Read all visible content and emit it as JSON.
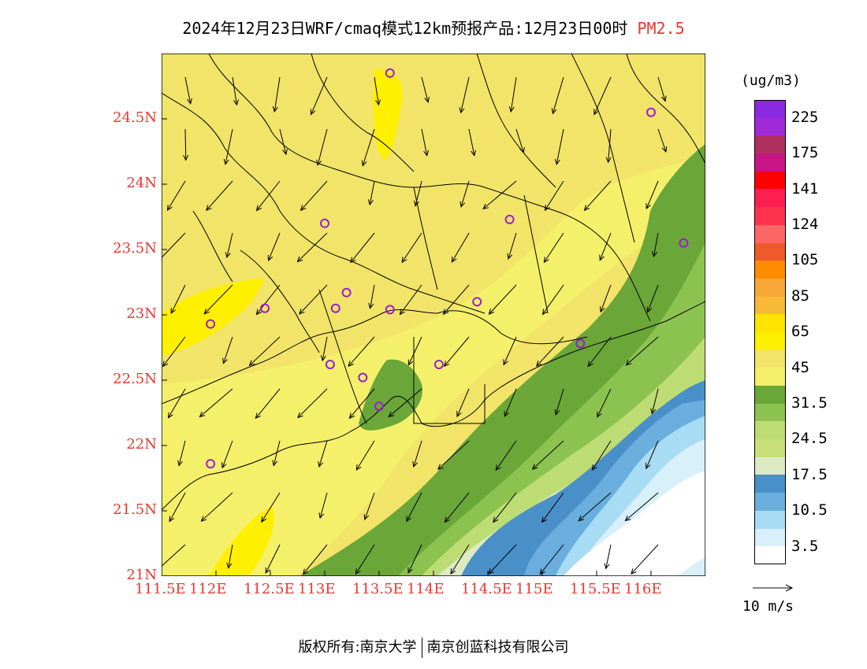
{
  "title": {
    "main": "2024年12月23日WRF/cmaq模式12km预报产品:12月23日00时",
    "species": "PM2.5"
  },
  "map": {
    "x_ticks": [
      "111.5E",
      "112E",
      "112.5E",
      "113E",
      "113.5E",
      "114E",
      "114.5E",
      "115E",
      "115.5E",
      "116E"
    ],
    "y_ticks": [
      "24.5N",
      "24N",
      "23.5N",
      "23N",
      "22.5N",
      "22N",
      "21.5N",
      "21N"
    ],
    "stations": [
      {
        "lon": 113.6,
        "lat": 24.85
      },
      {
        "lon": 116.0,
        "lat": 24.55
      },
      {
        "lon": 113.0,
        "lat": 23.7
      },
      {
        "lon": 114.7,
        "lat": 23.73
      },
      {
        "lon": 116.3,
        "lat": 23.55
      },
      {
        "lon": 112.45,
        "lat": 23.05
      },
      {
        "lon": 113.2,
        "lat": 23.17
      },
      {
        "lon": 113.1,
        "lat": 23.05
      },
      {
        "lon": 113.6,
        "lat": 23.04
      },
      {
        "lon": 114.4,
        "lat": 23.1
      },
      {
        "lon": 111.95,
        "lat": 22.93
      },
      {
        "lon": 115.35,
        "lat": 22.78
      },
      {
        "lon": 113.05,
        "lat": 22.62
      },
      {
        "lon": 114.05,
        "lat": 22.62
      },
      {
        "lon": 113.35,
        "lat": 22.52
      },
      {
        "lon": 113.5,
        "lat": 22.3
      },
      {
        "lon": 111.95,
        "lat": 21.86
      }
    ]
  },
  "colorbar": {
    "unit": "(ug/m3)",
    "colors": [
      "#8a2be2",
      "#a12ad8",
      "#b03060",
      "#c71585",
      "#ff0000",
      "#ff1e50",
      "#ff3350",
      "#ff6666",
      "#ee5a2a",
      "#ff8c00",
      "#f8a838",
      "#f8b838",
      "#ffe400",
      "#fff000",
      "#f2e468",
      "#f5f06a",
      "#6aa638",
      "#8cc350",
      "#bedc74",
      "#c9e07a",
      "#dcebc4",
      "#4a90c8",
      "#6aaede",
      "#a8dcf4",
      "#d8f0fa",
      "#ffffff"
    ],
    "labels": [
      "225",
      "175",
      "141",
      "124",
      "105",
      "85",
      "65",
      "45",
      "31.5",
      "24.5",
      "17.5",
      "10.5",
      "3.5"
    ]
  },
  "wind_reference": {
    "label": "10 m/s"
  },
  "copyright": {
    "prefix": "版权所有:",
    "org1": "南京大学",
    "org2": "南京创蓝科技有限公司"
  }
}
